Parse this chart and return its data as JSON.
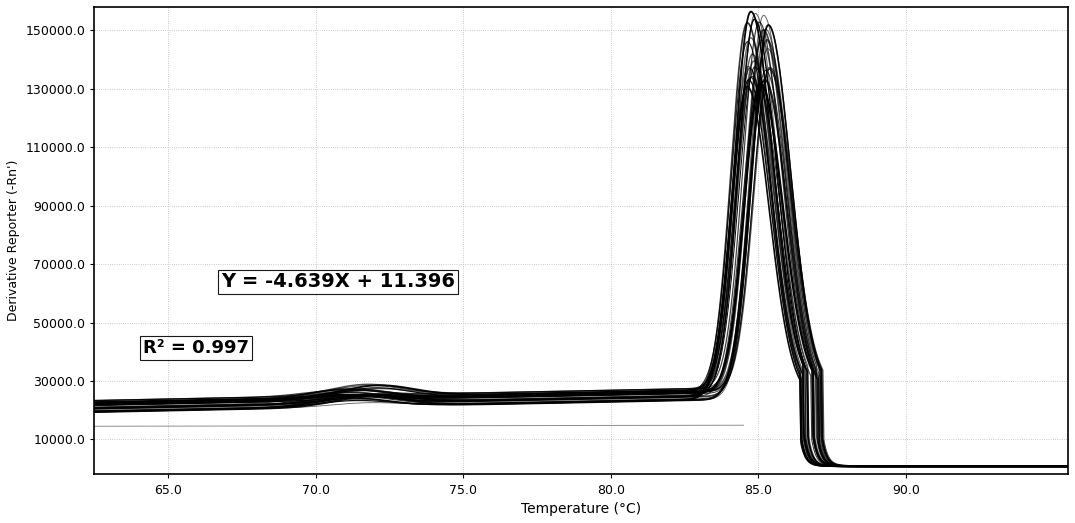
{
  "title": "",
  "xlabel": "Temperature (°C)",
  "ylabel": "Derivative Reporter (-Rn')",
  "xlim": [
    62.5,
    95.5
  ],
  "ylim": [
    -2000,
    158000
  ],
  "yticks": [
    10000,
    30000,
    50000,
    70000,
    90000,
    110000,
    130000,
    150000
  ],
  "ytick_labels": [
    "10000.0",
    "30000.0",
    "50000.0",
    "70000.0",
    "90000.0",
    "110000.0",
    "130000.0",
    "150000.0"
  ],
  "xticks": [
    65.0,
    70.0,
    75.0,
    80.0,
    85.0,
    90.0
  ],
  "xtick_labels": [
    "65.0",
    "70.0",
    "75.0",
    "80.0",
    "85.0",
    "90.0"
  ],
  "equation_text": "Y = -4.639X + 11.396",
  "r2_text": "R² = 0.997",
  "peak_temp": 85.0,
  "peak_value": 130000,
  "baseline_value": 22000,
  "background_color": "#ffffff",
  "line_color": "#000000",
  "grid_color": "#bbbbbb",
  "num_curves": 30
}
